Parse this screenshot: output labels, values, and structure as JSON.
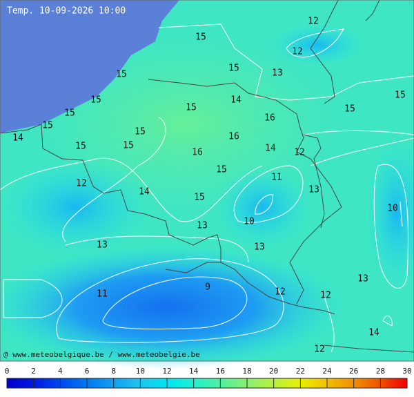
{
  "title": "Temp. 10-09-2026 10:00",
  "credit": "@ www.meteobelgique.be / www.meteobelgie.be",
  "contour_labels": [
    12,
    15,
    12,
    15,
    13,
    15,
    15,
    15,
    14,
    15,
    15,
    15,
    16,
    15,
    15,
    16,
    14,
    15,
    15,
    14,
    16,
    12,
    15,
    11,
    12,
    14,
    13,
    15,
    10,
    10,
    13,
    13,
    13,
    13,
    9,
    11,
    12,
    12,
    14,
    12
  ],
  "colorbar": {
    "ticks": [
      0,
      2,
      4,
      6,
      8,
      10,
      12,
      14,
      16,
      18,
      20,
      22,
      24,
      26,
      28,
      30
    ],
    "colors": [
      "#0000c8",
      "#0018e0",
      "#0048f0",
      "#0078f0",
      "#10a0f0",
      "#20c4f0",
      "#00e4f0",
      "#20f0d0",
      "#50f0a0",
      "#88f070",
      "#b8f040",
      "#e8f000",
      "#f0c000",
      "#f09000",
      "#f05000",
      "#f00000"
    ]
  }
}
